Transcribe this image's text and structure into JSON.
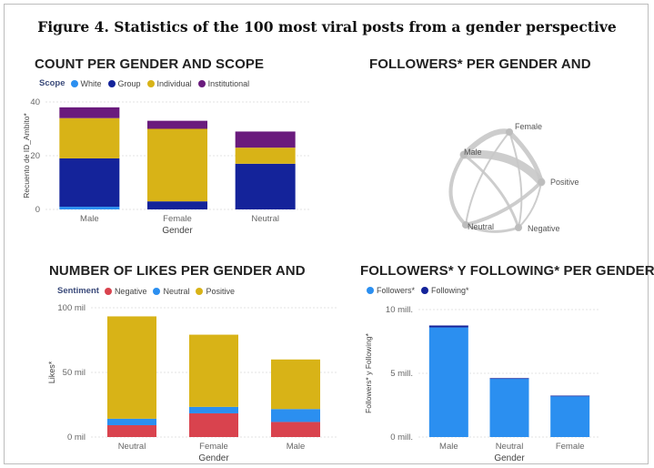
{
  "figure_title": "Figure 4. Statistics of the 100 most viral posts from a gender perspective",
  "chart_data": [
    {
      "id": "scope",
      "type": "bar",
      "stacked": true,
      "title": "COUNT PER GENDER AND SCOPE",
      "legend_title": "Scope",
      "xlabel": "Gender",
      "ylabel": "Recuento de ID_Ambito*",
      "categories": [
        "Male",
        "Female",
        "Neutral"
      ],
      "ylim": [
        0,
        40
      ],
      "yticks": [
        "0",
        "20",
        "40"
      ],
      "series": [
        {
          "name": "White",
          "color": "#2b8ff0",
          "values": [
            1,
            0,
            0
          ]
        },
        {
          "name": "Group",
          "color": "#14239a",
          "values": [
            18,
            3,
            17
          ]
        },
        {
          "name": "Individual",
          "color": "#d8b317",
          "values": [
            15,
            27,
            6
          ]
        },
        {
          "name": "Institutional",
          "color": "#6a1b7d",
          "values": [
            4,
            3,
            6
          ]
        }
      ],
      "grid": true
    },
    {
      "id": "likes",
      "type": "bar",
      "stacked": true,
      "title": "NUMBER OF LIKES PER GENDER AND",
      "legend_title": "Sentiment",
      "xlabel": "Gender",
      "ylabel": "Likes*",
      "categories": [
        "Neutral",
        "Female",
        "Male"
      ],
      "ylim": [
        0,
        120000
      ],
      "yticks": [
        "0 mil",
        "50 mil",
        "100 mil"
      ],
      "series": [
        {
          "name": "Negative",
          "color": "#d9434e",
          "values": [
            11000,
            22000,
            14000
          ]
        },
        {
          "name": "Neutral",
          "color": "#2b8ff0",
          "values": [
            6000,
            6000,
            12000
          ]
        },
        {
          "name": "Positive",
          "color": "#d8b317",
          "values": [
            95000,
            67000,
            46000
          ]
        }
      ],
      "grid": true
    },
    {
      "id": "followers",
      "type": "bar",
      "stacked": true,
      "title": "FOLLOWERS* Y FOLLOWING* PER GENDER",
      "legend_title": "",
      "xlabel": "Gender",
      "ylabel": "Followers* y Following*",
      "categories": [
        "Male",
        "Neutral",
        "Female"
      ],
      "ylim": [
        0,
        10
      ],
      "yticks": [
        "0 mill.",
        "5 mill.",
        "10 mill."
      ],
      "series": [
        {
          "name": "Followers*",
          "color": "#2b8ff0",
          "values": [
            8.6,
            4.6,
            3.2
          ]
        },
        {
          "name": "Following*",
          "color": "#14239a",
          "values": [
            0.15,
            0.02,
            0.05
          ]
        }
      ],
      "grid": true
    }
  ],
  "network": {
    "title": "FOLLOWERS* PER GENDER AND",
    "nodes": [
      "Male",
      "Female",
      "Positive",
      "Neutral",
      "Negative"
    ]
  },
  "colors": {
    "grid": "#e3e3e3",
    "axis_text": "#666666",
    "network": "#c8c8c8"
  }
}
